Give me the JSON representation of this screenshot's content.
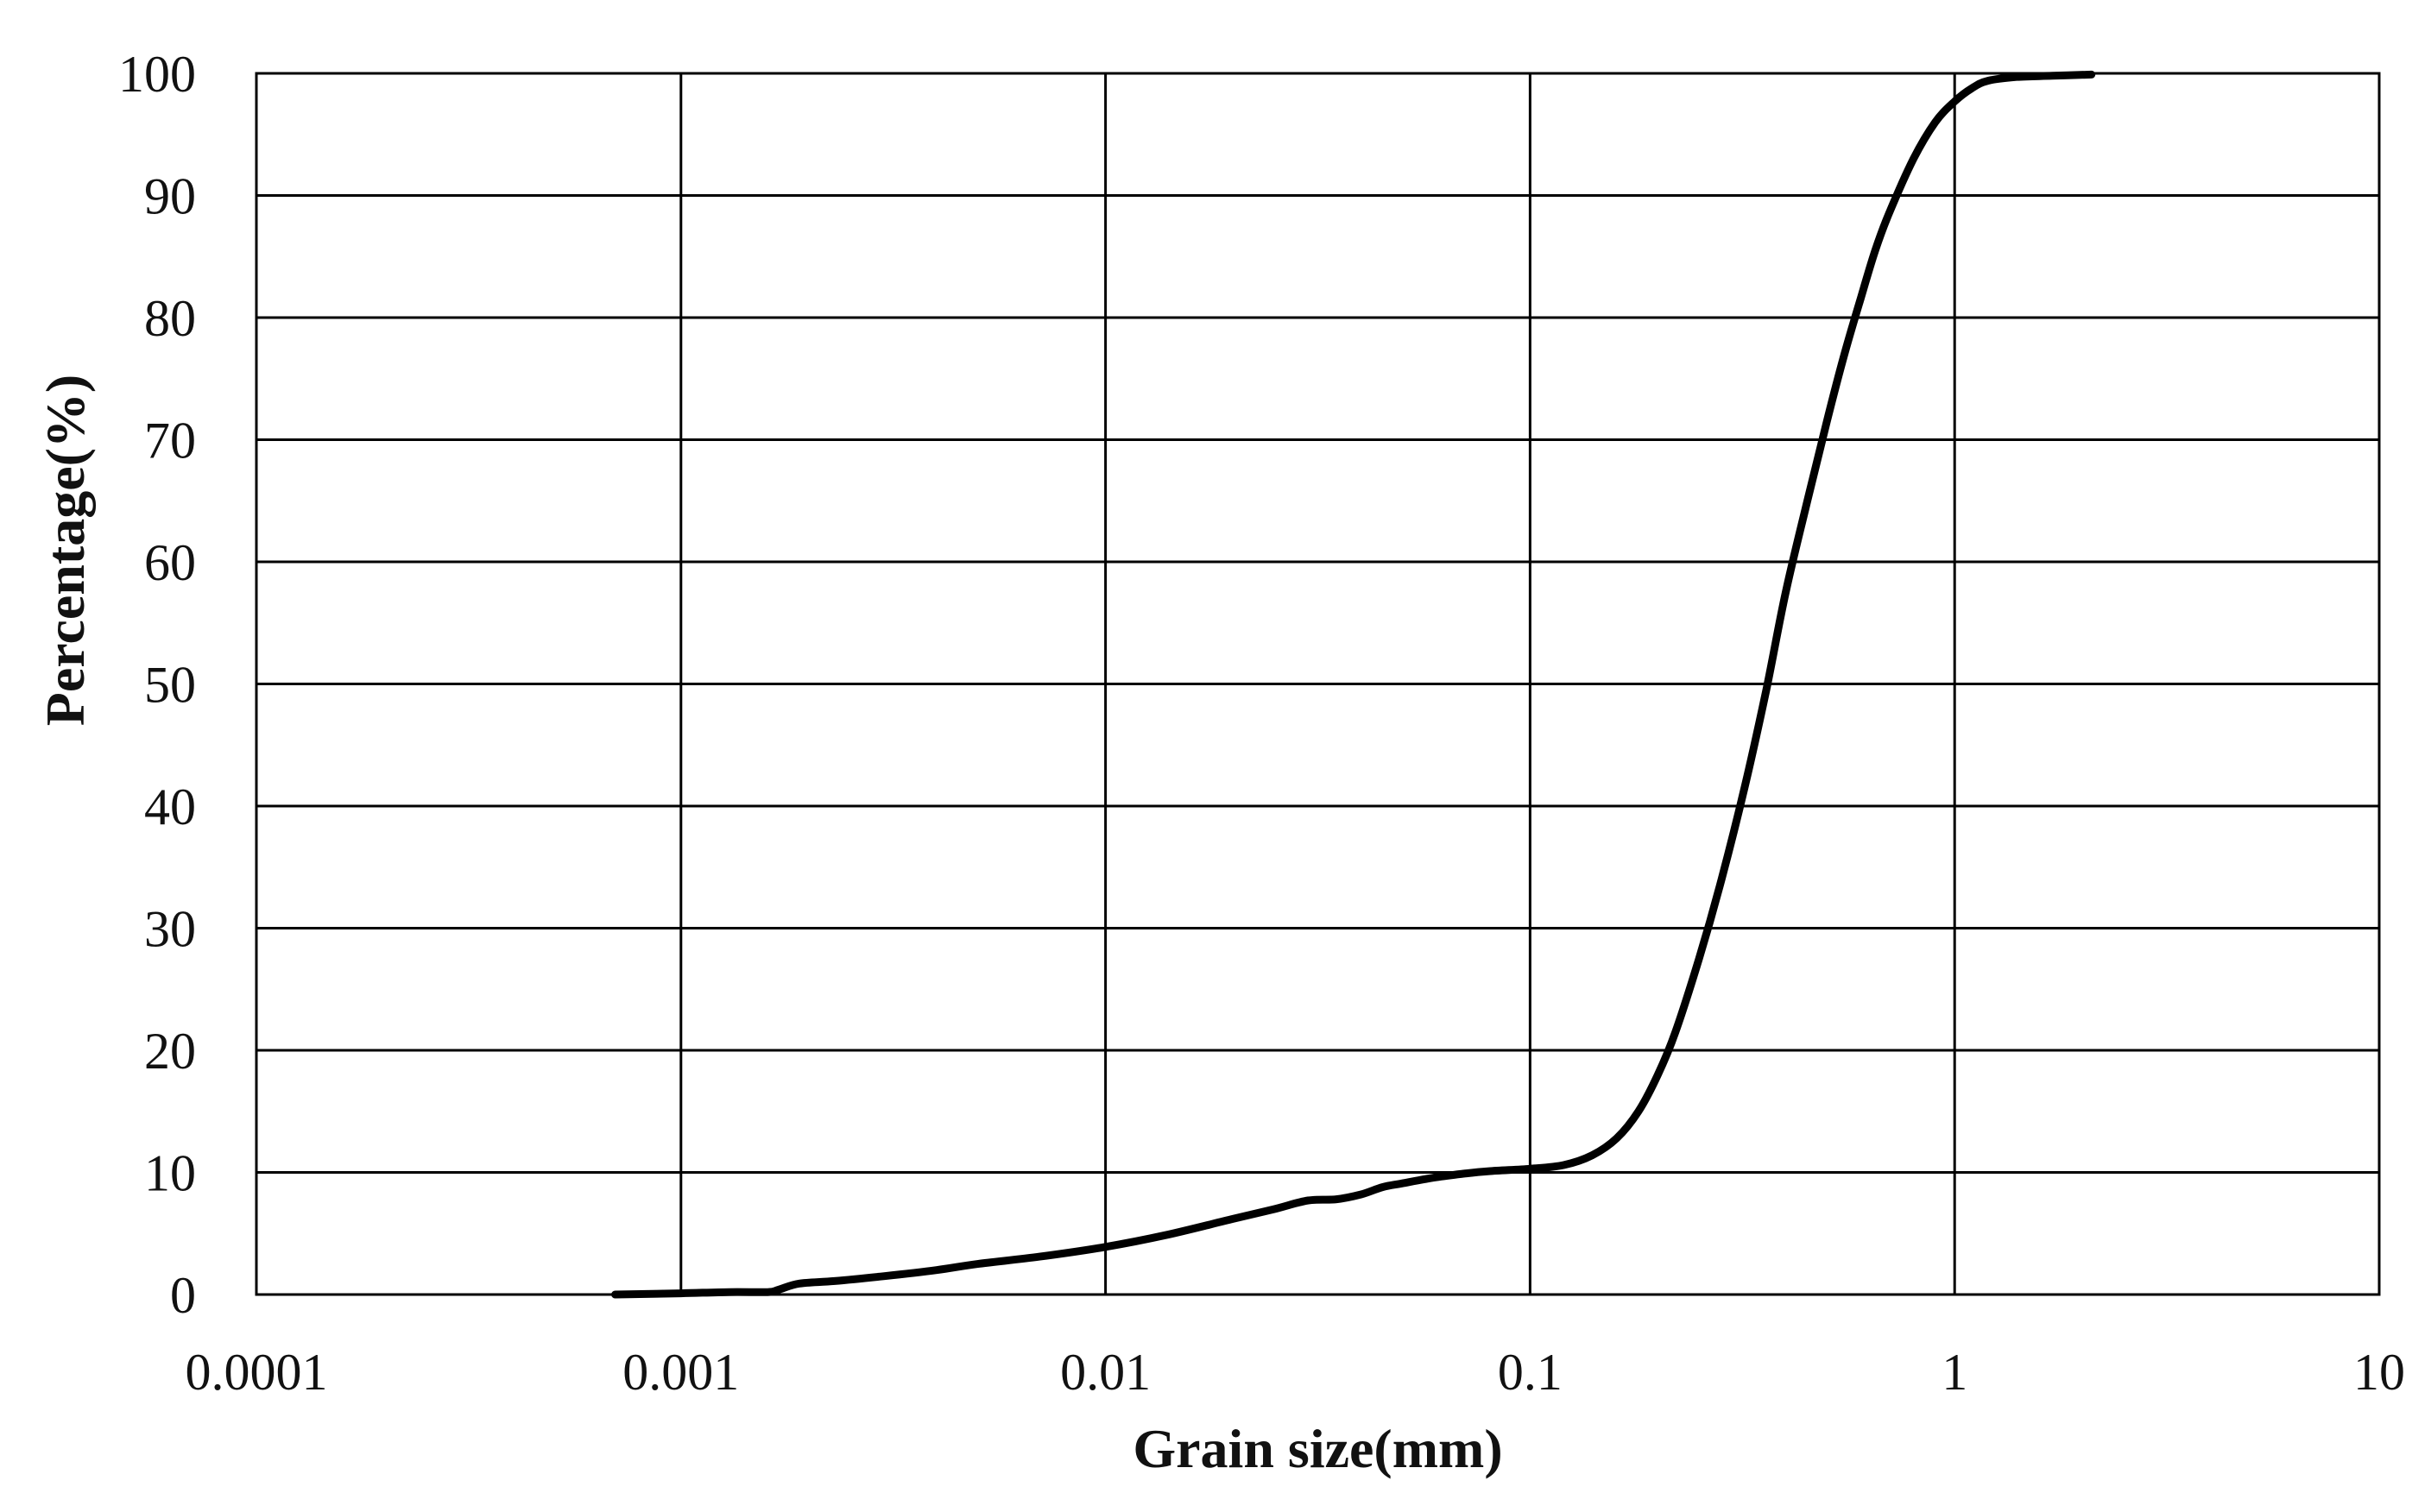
{
  "chart_data": {
    "type": "line",
    "title": "",
    "xlabel": "Grain size(mm)",
    "ylabel": "Percentage(%)",
    "xscale": "log",
    "xlim": [
      0.0001,
      10
    ],
    "ylim": [
      0,
      100
    ],
    "grid": true,
    "legend": "none",
    "x_tick_labels": [
      "0.0001",
      "0.001",
      "0.01",
      "0.1",
      "1",
      "10"
    ],
    "y_tick_labels": [
      "0",
      "10",
      "20",
      "30",
      "40",
      "50",
      "60",
      "70",
      "80",
      "90",
      "100"
    ],
    "series": [
      {
        "color": "#000000",
        "x": [
          0.0007,
          0.001,
          0.0013,
          0.0016,
          0.0017,
          0.0019,
          0.0023,
          0.003,
          0.004,
          0.005,
          0.007,
          0.01,
          0.014,
          0.02,
          0.025,
          0.03,
          0.035,
          0.04,
          0.045,
          0.05,
          0.06,
          0.07,
          0.08,
          0.1,
          0.12,
          0.14,
          0.16,
          0.18,
          0.2,
          0.22,
          0.25,
          0.28,
          0.32,
          0.36,
          0.4,
          0.45,
          0.5,
          0.55,
          0.6,
          0.65,
          0.7,
          0.8,
          0.9,
          1.0,
          1.1,
          1.2,
          1.4,
          1.7,
          2.1
        ],
        "y": [
          0,
          0.1,
          0.2,
          0.2,
          0.4,
          0.9,
          1.1,
          1.5,
          2.0,
          2.5,
          3.1,
          3.9,
          4.9,
          6.2,
          7.0,
          7.7,
          7.8,
          8.2,
          8.8,
          9.1,
          9.6,
          9.9,
          10.1,
          10.3,
          10.6,
          11.4,
          12.8,
          15.0,
          18.0,
          21.5,
          27.5,
          33.5,
          41.5,
          49.5,
          57.5,
          65.0,
          71.5,
          77.0,
          81.5,
          85.5,
          88.5,
          93.0,
          96.0,
          97.7,
          98.8,
          99.4,
          99.7,
          99.8,
          99.9
        ]
      }
    ]
  }
}
